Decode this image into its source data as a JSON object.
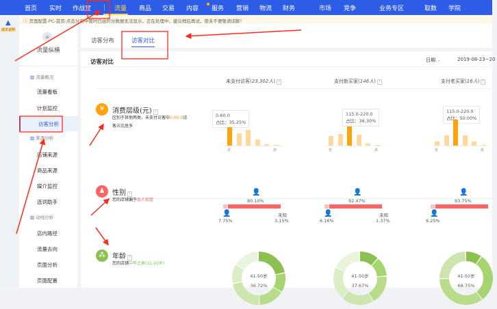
{
  "topnav": {
    "items": [
      "首页",
      "实时",
      "作战室",
      "流量",
      "商品",
      "交易",
      "内容",
      "服务",
      "营销",
      "物流",
      "财务",
      "市场",
      "竞争",
      "业务专区",
      "取数",
      "学院"
    ],
    "active": "流量"
  },
  "notice": {
    "icon": "info-icon",
    "text": "页面配置-PC-首页:点击分布中暂时已由的分数据无法显示，正在处理中，建议稍后再试，使未不便敬请谅解！"
  },
  "badge": "成本说明",
  "sidebar": {
    "app_title": "流量纵横",
    "groups": [
      {
        "label": "流量概况",
        "items": [
          "流量看板",
          "计划监控",
          "访客分析"
        ]
      },
      {
        "label": "来源分析",
        "items": [
          "店铺来源",
          "商品来源",
          "媒介监控",
          "选词助手"
        ]
      },
      {
        "label": "动线分析",
        "items": [
          "店内路径",
          "流量去向",
          "页面分析",
          "页面配置"
        ]
      }
    ],
    "active": "访客分析"
  },
  "tabs": [
    "访客分布",
    "访客对比"
  ],
  "active_tab": "访客对比",
  "card": {
    "title": "访客对比",
    "date_label": "日期",
    "date_value": "2019-08-23~20"
  },
  "columns": [
    {
      "label": "未支付访客",
      "count": "23,302人"
    },
    {
      "label": "支付新买家",
      "count": "146人"
    },
    {
      "label": "支付老买家",
      "count": "16人"
    }
  ],
  "rows": {
    "spend": {
      "title": "消费层级(元)",
      "desc_pre": "区别于其他两类，未支付访客中",
      "desc_hl": "0-60.0",
      "desc_post": "访客占比居多",
      "icon": "yuan-icon",
      "hl_color": "#ff9900"
    },
    "gender": {
      "title": "性别",
      "desc_pre": "您的店铺偏于",
      "desc_hl": "女人知音",
      "icon": "people-icon",
      "hl_color": "#ff5a5a"
    },
    "age": {
      "title": "年龄",
      "desc_pre": "您的店铺",
      "desc_hl": "中年之家(31-50岁)",
      "icon": "family-icon",
      "hl_color": "#7cc247"
    }
  },
  "spend_charts": [
    {
      "tooltip_range": "0-60.0",
      "tooltip_share": "占比：35.25%",
      "values": [
        35.25,
        24.2,
        29.9,
        11.5,
        3.1,
        1.3
      ],
      "highlight": 0
    },
    {
      "tooltip_range": "115.0-220.0",
      "tooltip_share": "占比：36.30%",
      "values": [
        18.6,
        22.7,
        36.3,
        21.4,
        4.1,
        1.2
      ],
      "highlight": 2
    },
    {
      "tooltip_range": "115.0-220.0",
      "tooltip_share": "占比：50.00%",
      "values": [
        7.7,
        19.4,
        50.0,
        19.4,
        7.7,
        1.5
      ],
      "highlight": 2
    }
  ],
  "axis": {
    "low": "低",
    "high": "高"
  },
  "gender_charts": [
    {
      "female": "80.10%",
      "male": "7.75%",
      "unknown_label": "未知",
      "unknown": "3.15%"
    },
    {
      "female": "92.47%",
      "male": "6.16%",
      "unknown_label": "未知",
      "unknown": "1.37%"
    },
    {
      "female": "93.75%",
      "male": "6.25%"
    }
  ],
  "age_charts": [
    {
      "label": "41-50岁",
      "pct": "36.72%"
    },
    {
      "label": "41-50岁",
      "pct": "37.67%"
    },
    {
      "label": "41-50岁",
      "pct": "68.75%"
    }
  ],
  "colors": {
    "nav": "#2d5de6",
    "active_nav": "#ffd24d",
    "bar": "#ffa20e",
    "bar_light": "#ffd89a",
    "female": "#ff6464",
    "annotation": "#ff2a1a"
  }
}
